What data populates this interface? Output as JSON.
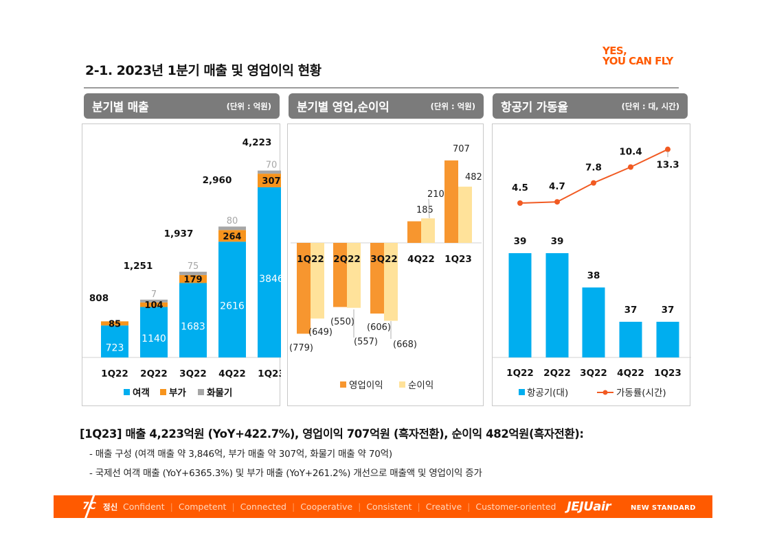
{
  "page": {
    "title": "2-1. 2023년 1분기 매출 및 영업이익 현황",
    "logo_line1": "YES,",
    "logo_line2": "YOU CAN FLY"
  },
  "panels": [
    {
      "title": "분기별 매출",
      "unit": "(단위 : 억원)"
    },
    {
      "title": "분기별 영업,순이익",
      "unit": "(단위 : 억원)"
    },
    {
      "title": "항공기 가동율",
      "unit": "(단위 : 대, 시간)"
    }
  ],
  "colors": {
    "passenger": "#00aeef",
    "ancillary": "#f7941d",
    "cargo": "#a6a6a6",
    "operating_profit": "#f7962f",
    "net_profit": "#ffe29a",
    "aircraft": "#00aeef",
    "utilization": "#f15a22",
    "brand": "#ff5a00"
  },
  "chart_data": [
    {
      "type": "bar",
      "stacked": true,
      "title": "분기별 매출",
      "unit": "억원",
      "categories": [
        "1Q22",
        "2Q22",
        "3Q22",
        "4Q22",
        "1Q23"
      ],
      "series": [
        {
          "name": "여객",
          "values": [
            723,
            1140,
            1683,
            2616,
            3846
          ]
        },
        {
          "name": "부가",
          "values": [
            85,
            104,
            179,
            264,
            307
          ]
        },
        {
          "name": "화물기",
          "values": [
            null,
            7,
            75,
            80,
            70
          ]
        }
      ],
      "totals": [
        808,
        1251,
        1937,
        2960,
        4223
      ],
      "total_labels": [
        "808",
        "1,251",
        "1,937",
        "2,960",
        "4,223"
      ],
      "legend": [
        "여객",
        "부가",
        "화물기"
      ],
      "legend_position": "bottom",
      "ylim": [
        0,
        4400
      ],
      "grid": false
    },
    {
      "type": "bar",
      "title": "분기별 영업,순이익",
      "unit": "억원",
      "categories": [
        "1Q22",
        "2Q22",
        "3Q22",
        "4Q22",
        "1Q23"
      ],
      "series": [
        {
          "name": "영업이익",
          "values": [
            -779,
            -550,
            -606,
            185,
            707
          ],
          "labels": [
            "(779)",
            "(550)",
            "(606)",
            "185",
            "707"
          ]
        },
        {
          "name": "순이익",
          "values": [
            -649,
            -557,
            -668,
            210,
            482
          ],
          "labels": [
            "(649)",
            "(557)",
            "(668)",
            "210",
            "482"
          ]
        }
      ],
      "legend": [
        "영업이익",
        "순이익"
      ],
      "legend_position": "bottom",
      "ylim": [
        -900,
        900
      ],
      "grid": false
    },
    {
      "type": "bar",
      "title": "항공기 가동율",
      "unit": "대, 시간",
      "categories": [
        "1Q22",
        "2Q22",
        "3Q22",
        "4Q22",
        "1Q23"
      ],
      "series": [
        {
          "name": "항공기(대)",
          "type": "bar",
          "values": [
            39,
            39,
            38,
            37,
            37
          ]
        },
        {
          "name": "가동률(시간)",
          "type": "line",
          "values": [
            4.5,
            4.7,
            7.8,
            10.4,
            13.3
          ]
        }
      ],
      "legend": [
        "항공기(대)",
        "가동률(시간)"
      ],
      "legend_position": "bottom",
      "grid": false
    }
  ],
  "summary": {
    "headline": "[1Q23] 매출 4,223억원 (YoY+422.7%), 영업이익 707억원 (흑자전환), 순이익 482억원(흑자전환):",
    "bullets": [
      "- 매출 구성 (여객 매출 약 3,846억, 부가 매출 약 307억, 화물기 매출 약 70억)",
      "- 국제선 여객 매출 (YoY+6365.3%) 및 부가 매출 (YoY+261.2%) 개선으로 매출액 및 영업이익 증가"
    ]
  },
  "footer": {
    "seven": "7C",
    "spirit": "정신",
    "values": [
      "Confident",
      "Competent",
      "Connected",
      "Cooperative",
      "Consistent",
      "Creative",
      "Customer-oriented"
    ],
    "brand": "JEJUair",
    "tagline": "NEW STANDARD"
  }
}
